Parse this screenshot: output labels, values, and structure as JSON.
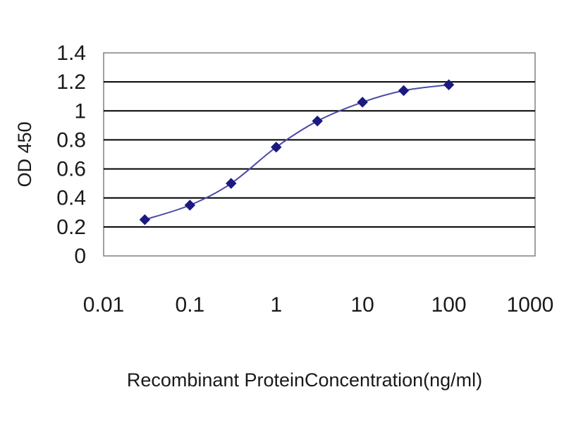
{
  "chart_data": {
    "type": "line",
    "x": [
      0.03,
      0.1,
      0.3,
      1,
      3,
      10,
      30,
      100
    ],
    "series": [
      {
        "values": [
          0.25,
          0.35,
          0.5,
          0.75,
          0.93,
          1.06,
          1.14,
          1.18
        ]
      }
    ],
    "xlabel": "Recombinant ProteinConcentration(ng/ml)",
    "ylabel": "OD 450",
    "x_scale": "log",
    "xlim": [
      0.01,
      1000
    ],
    "ylim": [
      0,
      1.4
    ],
    "x_ticks": [
      "0.01",
      "0.1",
      "1",
      "10",
      "100",
      "1000"
    ],
    "y_ticks": [
      "0",
      "0.2",
      "0.4",
      "0.6",
      "0.8",
      "1",
      "1.2",
      "1.4"
    ],
    "grid": "horizontal",
    "marker": "diamond",
    "colors": {
      "line": "#4b4ba8",
      "marker": "#1a1a80",
      "grid": "#000000"
    }
  }
}
